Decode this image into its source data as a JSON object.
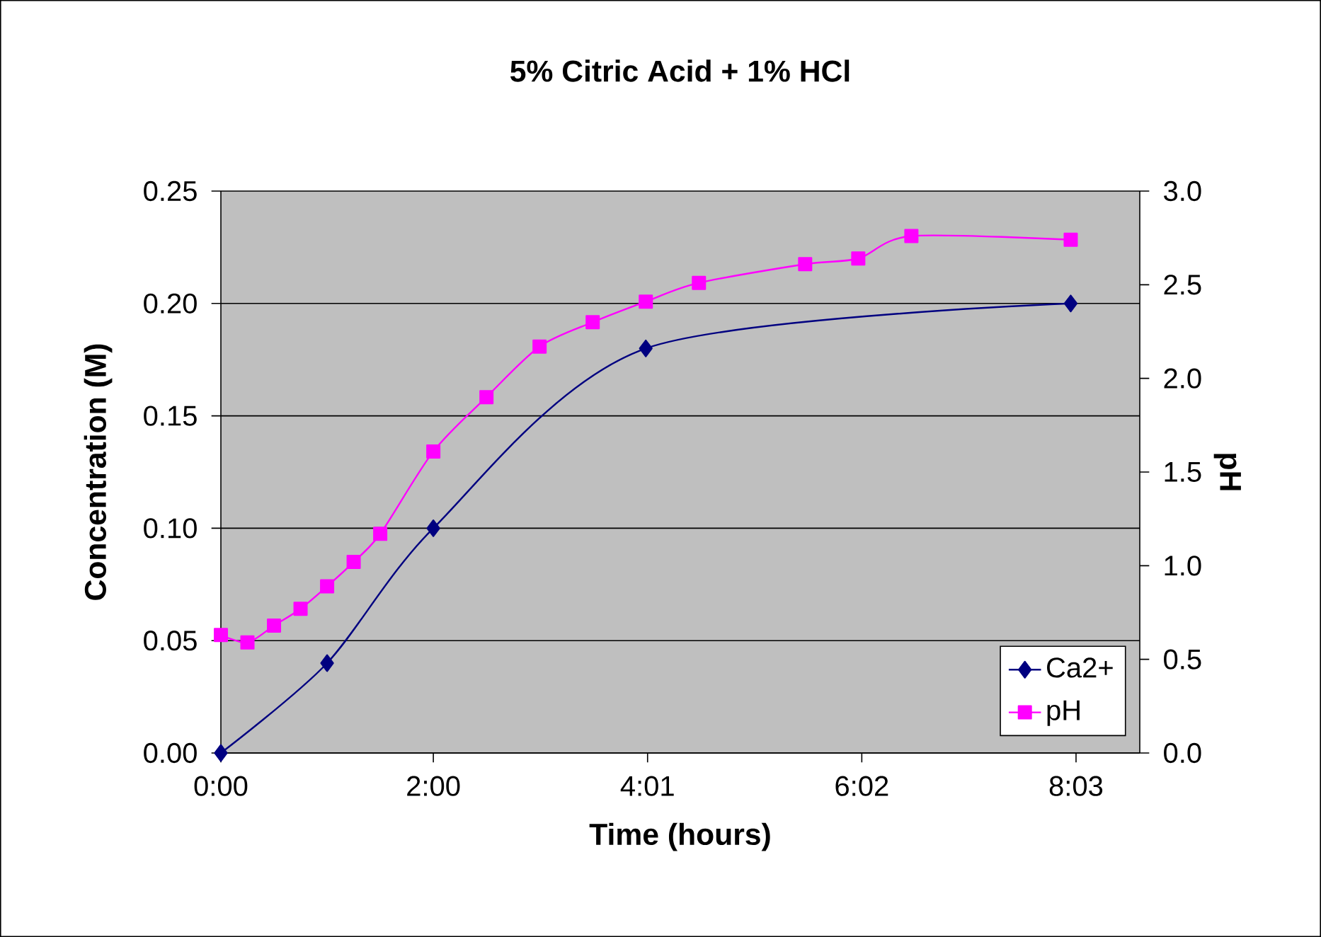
{
  "chart_data": {
    "type": "line",
    "title": "5% Citric Acid + 1% HCl",
    "xlabel": "Time (hours)",
    "ylabel": "Concentration (M)",
    "y2label": "pH",
    "xlim": [
      0,
      8.65
    ],
    "xticks": [
      {
        "value": 0,
        "label": "0:00"
      },
      {
        "value": 2,
        "label": "2:00"
      },
      {
        "value": 4.0167,
        "label": "4:01"
      },
      {
        "value": 6.0333,
        "label": "6:02"
      },
      {
        "value": 8.05,
        "label": "8:03"
      }
    ],
    "ylim": [
      0,
      0.25
    ],
    "yticks": [
      {
        "value": 0,
        "label": "0.00"
      },
      {
        "value": 0.05,
        "label": "0.05"
      },
      {
        "value": 0.1,
        "label": "0.10"
      },
      {
        "value": 0.15,
        "label": "0.15"
      },
      {
        "value": 0.2,
        "label": "0.20"
      },
      {
        "value": 0.25,
        "label": "0.25"
      }
    ],
    "y2lim": [
      0,
      3
    ],
    "y2ticks": [
      {
        "value": 0,
        "label": "0.0"
      },
      {
        "value": 0.5,
        "label": "0.5"
      },
      {
        "value": 1,
        "label": "1.0"
      },
      {
        "value": 1.5,
        "label": "1.5"
      },
      {
        "value": 2,
        "label": "2.0"
      },
      {
        "value": 2.5,
        "label": "2.5"
      },
      {
        "value": 3,
        "label": "3.0"
      }
    ],
    "grid": "y",
    "legend": "bottom right",
    "series": [
      {
        "name": "Ca2+",
        "color": "#000080",
        "marker": "diamond",
        "x": [
          0,
          1,
          2,
          4,
          8
        ],
        "values": [
          0,
          0.04,
          0.1,
          0.18,
          0.2
        ]
      },
      {
        "name": "pH",
        "color": "#ff00ff",
        "marker": "square",
        "axis": "y2",
        "x": [
          0,
          0.25,
          0.5,
          0.75,
          1,
          1.25,
          1.5,
          2,
          2.5,
          3,
          3.5,
          4,
          4.5,
          5.5,
          6,
          6.5,
          8
        ],
        "values": [
          0.63,
          0.59,
          0.68,
          0.77,
          0.89,
          1.02,
          1.17,
          1.61,
          1.9,
          2.17,
          2.3,
          2.41,
          2.51,
          2.61,
          2.64,
          2.76,
          2.74
        ]
      }
    ]
  }
}
